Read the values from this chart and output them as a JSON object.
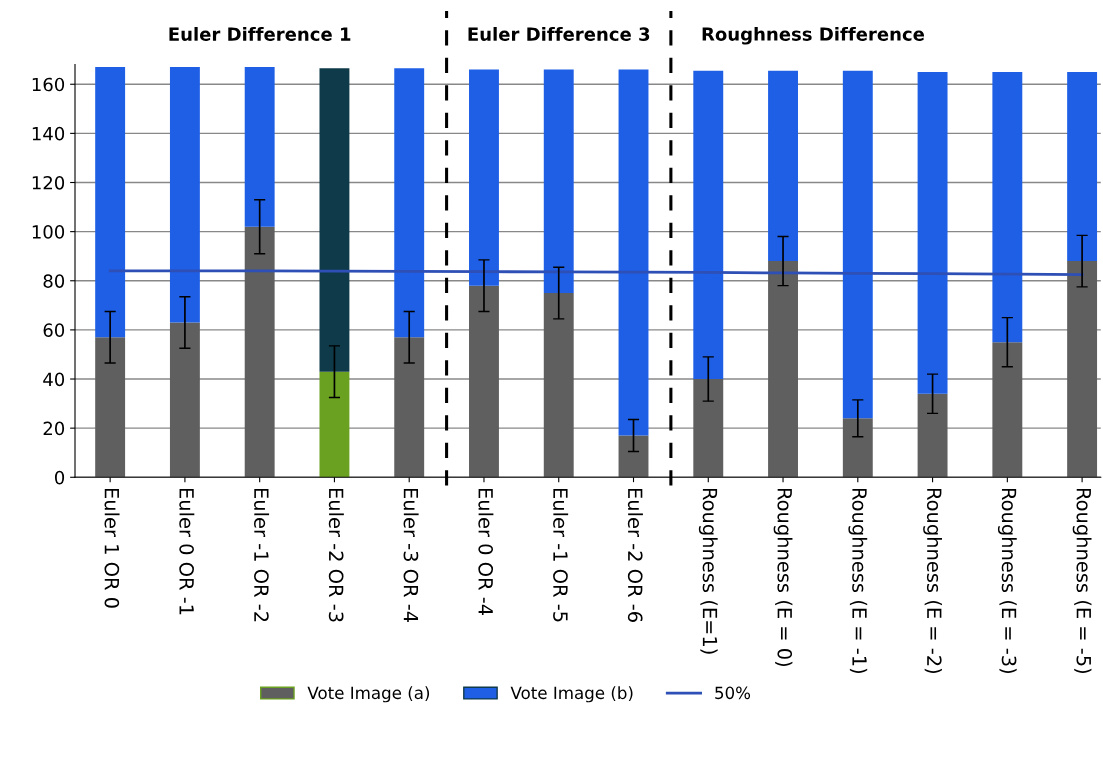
{
  "chart_data": {
    "type": "bar",
    "stacked": true,
    "categories": [
      "Euler 1 OR 0",
      "Euler 0 OR -1",
      "Euler -1 OR -2",
      "Euler -2 OR -3",
      "Euler -3 OR -4",
      "Euler 0 OR -4",
      "Euler -1 OR -5",
      "Euler -2 OR -6",
      "Roughness (E=1)",
      "Roughness (E = 0)",
      "Roughness (E = -1)",
      "Roughness (E = -2)",
      "Roughness (E = -3)",
      "Roughness (E = -5)"
    ],
    "series": [
      {
        "name": "Vote Image (a)",
        "color": "#5f5f5f",
        "colors": [
          "#5f5f5f",
          "#5f5f5f",
          "#5f5f5f",
          "#6aa121",
          "#5f5f5f",
          "#5f5f5f",
          "#5f5f5f",
          "#5f5f5f",
          "#5f5f5f",
          "#5f5f5f",
          "#5f5f5f",
          "#5f5f5f",
          "#5f5f5f",
          "#5f5f5f"
        ],
        "values": [
          57,
          63,
          102,
          43,
          57,
          78,
          75,
          17,
          40,
          88,
          24,
          34,
          55,
          88
        ],
        "errors": [
          10.5,
          10.5,
          11,
          10.5,
          10.5,
          10.5,
          10.5,
          6.5,
          9,
          10,
          7.5,
          8,
          10,
          10.5
        ]
      },
      {
        "name": "Vote Image (b)",
        "color": "#1e5fe6",
        "colors": [
          "#1e5fe6",
          "#1e5fe6",
          "#1e5fe6",
          "#0f3a4a",
          "#1e5fe6",
          "#1e5fe6",
          "#1e5fe6",
          "#1e5fe6",
          "#1e5fe6",
          "#1e5fe6",
          "#1e5fe6",
          "#1e5fe6",
          "#1e5fe6",
          "#1e5fe6"
        ],
        "values": [
          110,
          104,
          65,
          123.5,
          109.5,
          88,
          91,
          149,
          125.5,
          77.5,
          141.5,
          131,
          110,
          77
        ]
      },
      {
        "name": "50%",
        "type": "line",
        "color": "#2e4fb5",
        "values": [
          84,
          84,
          84,
          83.9,
          83.8,
          83.7,
          83.6,
          83.5,
          83.4,
          83.2,
          83,
          82.9,
          82.7,
          82.5
        ]
      }
    ],
    "ylim": [
      0,
      168
    ],
    "yticks": [
      0,
      20,
      40,
      60,
      80,
      100,
      120,
      140,
      160
    ],
    "grid": "y",
    "legend": "bottom",
    "marker": "none",
    "annotations": [
      "Euler Difference 1",
      "Euler Difference 3",
      "Roughness Difference"
    ]
  }
}
